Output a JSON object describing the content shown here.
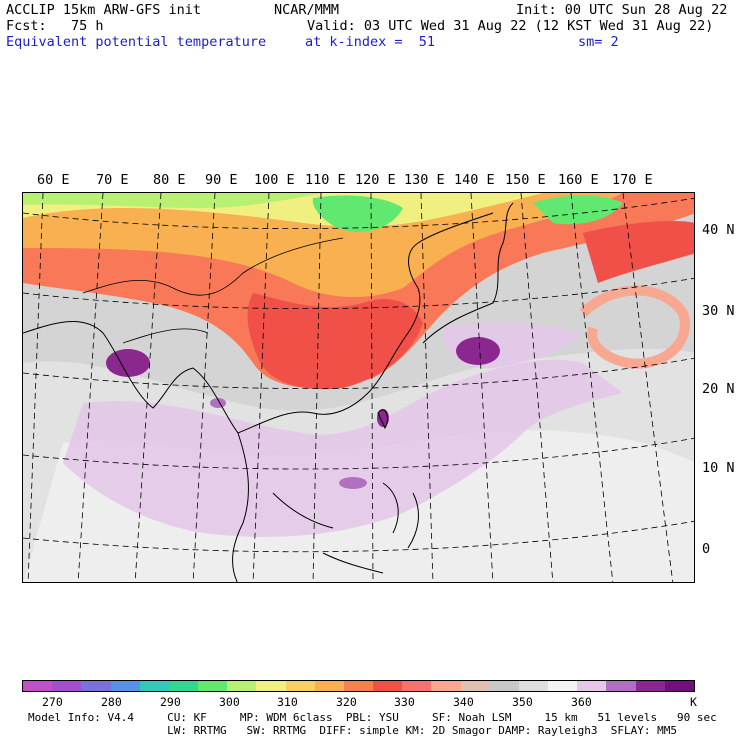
{
  "header": {
    "line1_left": "ACCLIP 15km ARW-GFS init",
    "line1_center": "NCAR/MMM",
    "line1_right": "Init: 00 UTC Sun 28 Aug 22",
    "line2_left": "Fcst:   75 h",
    "line2_right": "Valid: 03 UTC Wed 31 Aug 22 (12 KST Wed 31 Aug 22)",
    "line3_left": "Equivalent potential temperature",
    "line3_center": "at k-index =  51",
    "line3_right": "sm= 2"
  },
  "map": {
    "lon_labels": [
      "60 E",
      "70 E",
      "80 E",
      "90 E",
      "100 E",
      "110 E",
      "120 E",
      "130 E",
      "140 E",
      "150 E",
      "160 E",
      "170 E"
    ],
    "lat_labels": [
      "40 N",
      "30 N",
      "20 N",
      "10 N",
      "0"
    ]
  },
  "colorbar": {
    "colors": [
      "#c04fc8",
      "#a050d0",
      "#7a70e0",
      "#5a90e8",
      "#34c8b8",
      "#30d890",
      "#60e870",
      "#b8f070",
      "#f0f080",
      "#f8d060",
      "#f8b050",
      "#f88050",
      "#f05048",
      "#f87070",
      "#f8a890",
      "#e0c0b0",
      "#c8c8c8",
      "#dedede",
      "#f4f4f4",
      "#e4c8e8",
      "#b070c0",
      "#8a2890",
      "#70107a"
    ],
    "ticks": [
      "270",
      "280",
      "290",
      "300",
      "310",
      "320",
      "330",
      "340",
      "350",
      "360",
      "K"
    ]
  },
  "footer": {
    "line1": "Model Info: V4.4     CU: KF     MP: WDM 6class  PBL: YSU     SF: Noah LSM     15 km   51 levels   90 sec",
    "line2": "                     LW: RRTMG   SW: RRTMG  DIFF: simple KM: 2D Smagor DAMP: Rayleigh3  SFLAY: MM5"
  }
}
